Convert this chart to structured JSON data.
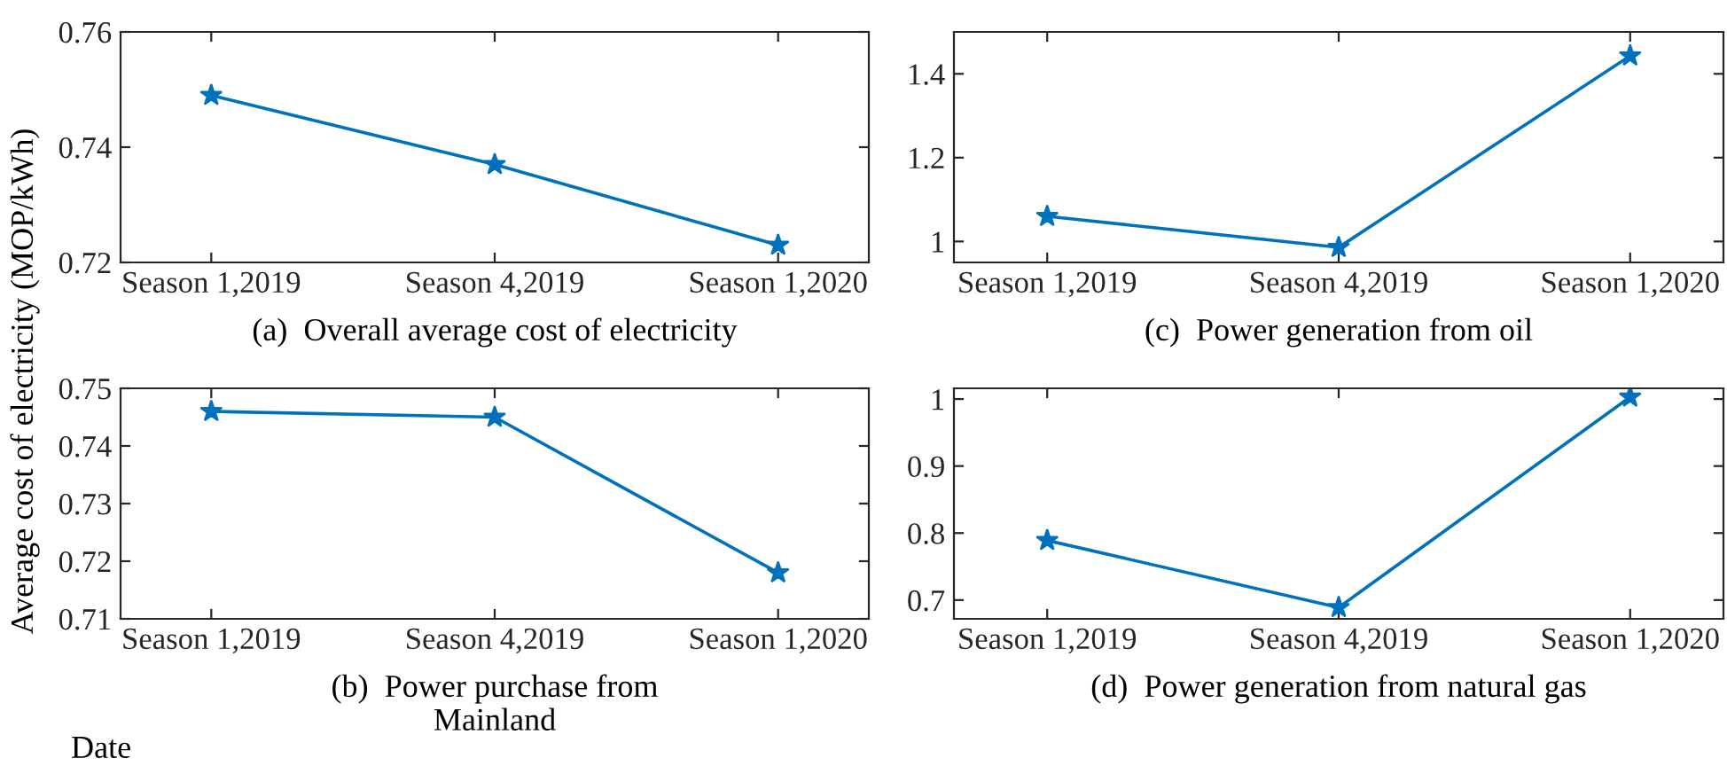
{
  "chart_data": [
    {
      "type": "line",
      "title": "(a)  Overall average cost of electricity",
      "ylabel": "Average cost of electricity (MOP/kWh)",
      "categories": [
        "Season 1,2019",
        "Season 4,2019",
        "Season 1,2020"
      ],
      "values": [
        0.749,
        0.737,
        0.723
      ],
      "color": "#0072bd",
      "marker": "star",
      "ylim": [
        0.72,
        0.76
      ],
      "yticks": [
        0.72,
        0.74,
        0.76
      ]
    },
    {
      "type": "line",
      "title": "(c)  Power generation from oil",
      "categories": [
        "Season 1,2019",
        "Season 4,2019",
        "Season 1,2020"
      ],
      "values": [
        1.06,
        0.986,
        1.443
      ],
      "color": "#0072bd",
      "marker": "star",
      "ylim": [
        0.95,
        1.5
      ],
      "yticks": [
        1,
        1.2,
        1.4
      ]
    },
    {
      "type": "line",
      "title": "(b)  Power purchase from\nMainland",
      "xlabel": "Date",
      "categories": [
        "Season 1,2019",
        "Season 4,2019",
        "Season 1,2020"
      ],
      "values": [
        0.746,
        0.745,
        0.718
      ],
      "color": "#0072bd",
      "marker": "star",
      "ylim": [
        0.71,
        0.75
      ],
      "yticks": [
        0.71,
        0.72,
        0.73,
        0.74,
        0.75
      ]
    },
    {
      "type": "line",
      "title": "(d)  Power generation from natural gas",
      "categories": [
        "Season 1,2019",
        "Season 4,2019",
        "Season 1,2020"
      ],
      "values": [
        0.789,
        0.689,
        1.003
      ],
      "color": "#0072bd",
      "marker": "star",
      "ylim": [
        0.672,
        1.016
      ],
      "yticks": [
        0.7,
        0.8,
        0.9,
        1
      ]
    }
  ]
}
